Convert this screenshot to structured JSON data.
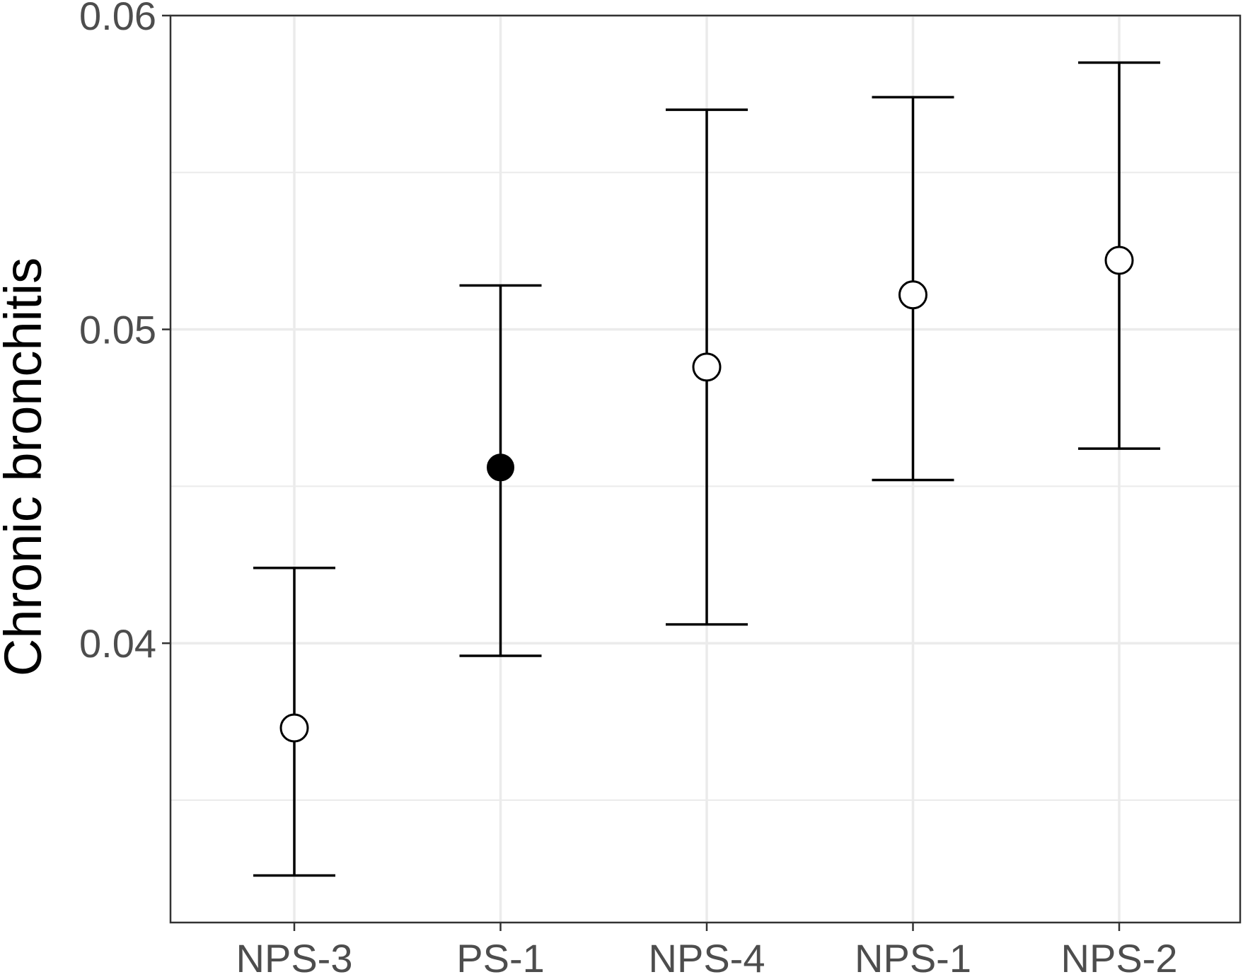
{
  "chart_data": {
    "type": "errorbar",
    "categories": [
      "NPS-3",
      "PS-1",
      "NPS-4",
      "NPS-1",
      "NPS-2"
    ],
    "series": [
      {
        "values": [
          0.0373,
          0.0456,
          0.0488,
          0.0511,
          0.0522
        ],
        "lower": [
          0.0326,
          0.0396,
          0.0406,
          0.0452,
          0.0462
        ],
        "upper": [
          0.0424,
          0.0514,
          0.057,
          0.0574,
          0.0585
        ],
        "marker_fill": [
          "open",
          "filled",
          "open",
          "open",
          "open"
        ]
      }
    ],
    "xlabel": "",
    "ylabel": "Chronic bronchitis",
    "ylim": [
      0.0311,
      0.06
    ],
    "yticks": [
      0.04,
      0.05,
      0.06
    ],
    "ytick_labels": [
      "0.04",
      "0.05",
      "0.06"
    ],
    "grid": true,
    "colors": {
      "panel_border": "#333333",
      "grid": "#ebebeb",
      "marks": "#000000",
      "tick_text": "#4d4d4d"
    }
  }
}
